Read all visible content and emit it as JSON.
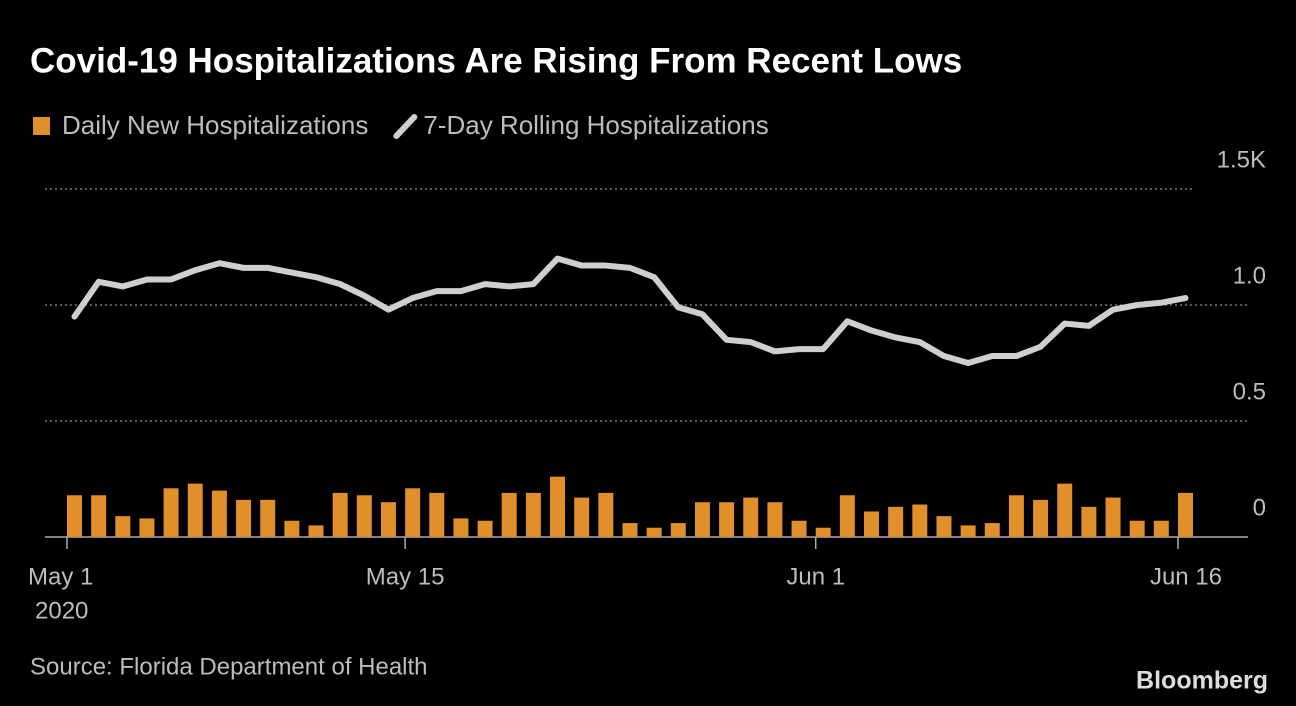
{
  "chart_data": {
    "type": "bar_line",
    "title": "Covid-19 Hospitalizations Are Rising From Recent Lows",
    "source": "Source: Florida Department of Health",
    "logo": "Bloomberg",
    "x": [
      "2020-05-01",
      "2020-05-02",
      "2020-05-03",
      "2020-05-04",
      "2020-05-05",
      "2020-05-06",
      "2020-05-07",
      "2020-05-08",
      "2020-05-09",
      "2020-05-10",
      "2020-05-11",
      "2020-05-12",
      "2020-05-13",
      "2020-05-14",
      "2020-05-15",
      "2020-05-16",
      "2020-05-17",
      "2020-05-18",
      "2020-05-19",
      "2020-05-20",
      "2020-05-21",
      "2020-05-22",
      "2020-05-23",
      "2020-05-24",
      "2020-05-25",
      "2020-05-26",
      "2020-05-27",
      "2020-05-28",
      "2020-05-29",
      "2020-05-30",
      "2020-05-31",
      "2020-06-01",
      "2020-06-02",
      "2020-06-03",
      "2020-06-04",
      "2020-06-05",
      "2020-06-06",
      "2020-06-07",
      "2020-06-08",
      "2020-06-09",
      "2020-06-10",
      "2020-06-11",
      "2020-06-12",
      "2020-06-13",
      "2020-06-14",
      "2020-06-15",
      "2020-06-16"
    ],
    "series": [
      {
        "name": "Daily New Hospitalizations",
        "type": "bar",
        "color": "#e08f2b",
        "values": [
          0.18,
          0.18,
          0.09,
          0.08,
          0.21,
          0.23,
          0.2,
          0.16,
          0.16,
          0.07,
          0.05,
          0.19,
          0.18,
          0.15,
          0.21,
          0.19,
          0.08,
          0.07,
          0.19,
          0.19,
          0.26,
          0.17,
          0.19,
          0.06,
          0.04,
          0.06,
          0.15,
          0.15,
          0.17,
          0.15,
          0.07,
          0.04,
          0.18,
          0.11,
          0.13,
          0.14,
          0.09,
          0.05,
          0.06,
          0.18,
          0.16,
          0.23,
          0.13,
          0.17,
          0.07,
          0.07,
          0.19
        ]
      },
      {
        "name": "7-Day Rolling Hospitalizations",
        "type": "line",
        "color": "#cfcfcf",
        "values": [
          0.95,
          1.1,
          1.08,
          1.11,
          1.11,
          1.15,
          1.18,
          1.16,
          1.16,
          1.14,
          1.12,
          1.09,
          1.04,
          0.98,
          1.03,
          1.06,
          1.06,
          1.09,
          1.08,
          1.09,
          1.2,
          1.17,
          1.17,
          1.16,
          1.12,
          0.99,
          0.96,
          0.85,
          0.84,
          0.8,
          0.81,
          0.81,
          0.93,
          0.89,
          0.86,
          0.84,
          0.78,
          0.75,
          0.78,
          0.78,
          0.82,
          0.92,
          0.91,
          0.98,
          1.0,
          1.01,
          1.03
        ]
      }
    ],
    "xticks": [
      {
        "value": "2020-05-01",
        "label": "May 1",
        "sublabel": "2020"
      },
      {
        "value": "2020-05-15",
        "label": "May 15"
      },
      {
        "value": "2020-06-01",
        "label": "Jun 1"
      },
      {
        "value": "2020-06-16",
        "label": "Jun 16"
      }
    ],
    "ylim": [
      0,
      1.5
    ],
    "yticks": [
      0,
      0.5,
      {
        "value": 1,
        "label": "1.0"
      },
      {
        "value": 1.5,
        "label": "1.5K"
      }
    ],
    "grid": true
  }
}
